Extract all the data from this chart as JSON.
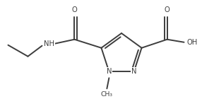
{
  "bg_color": "#ffffff",
  "line_color": "#3d3d3d",
  "line_width": 1.4,
  "font_size": 7.2,
  "figsize": [
    2.86,
    1.4
  ],
  "dpi": 100,
  "xlim": [
    0,
    286
  ],
  "ylim": [
    0,
    140
  ]
}
